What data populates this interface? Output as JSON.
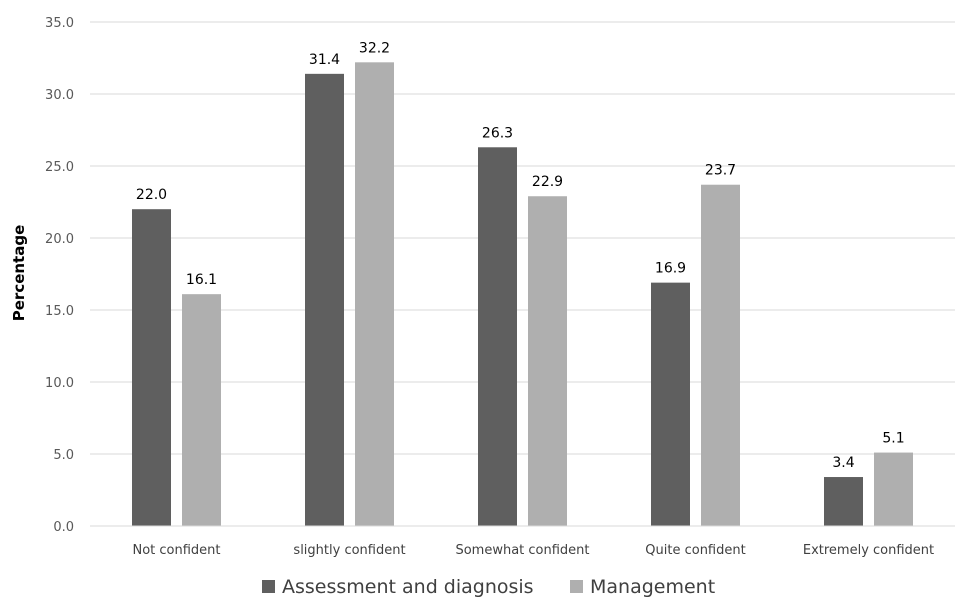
{
  "chart_data": {
    "type": "bar",
    "title": "",
    "xlabel": "",
    "ylabel": "Percentage",
    "ylim": [
      0,
      35
    ],
    "yticks": [
      "0.0",
      "5.0",
      "10.0",
      "15.0",
      "20.0",
      "25.0",
      "30.0",
      "35.0"
    ],
    "categories": [
      "Not confident",
      "slightly confident",
      "Somewhat confident",
      "Quite confident",
      "Extremely confident"
    ],
    "series": [
      {
        "name": "Assessment and diagnosis",
        "color": "#5f5f5f",
        "values": [
          22.0,
          31.4,
          26.3,
          16.9,
          3.4
        ],
        "labels": [
          "22.0",
          "31.4",
          "26.3",
          "16.9",
          "3.4"
        ]
      },
      {
        "name": "Management",
        "color": "#afafaf",
        "values": [
          16.1,
          32.2,
          22.9,
          23.7,
          5.1
        ],
        "labels": [
          "16.1",
          "32.2",
          "22.9",
          "23.7",
          "5.1"
        ]
      }
    ],
    "grid": true,
    "legend_position": "bottom"
  }
}
